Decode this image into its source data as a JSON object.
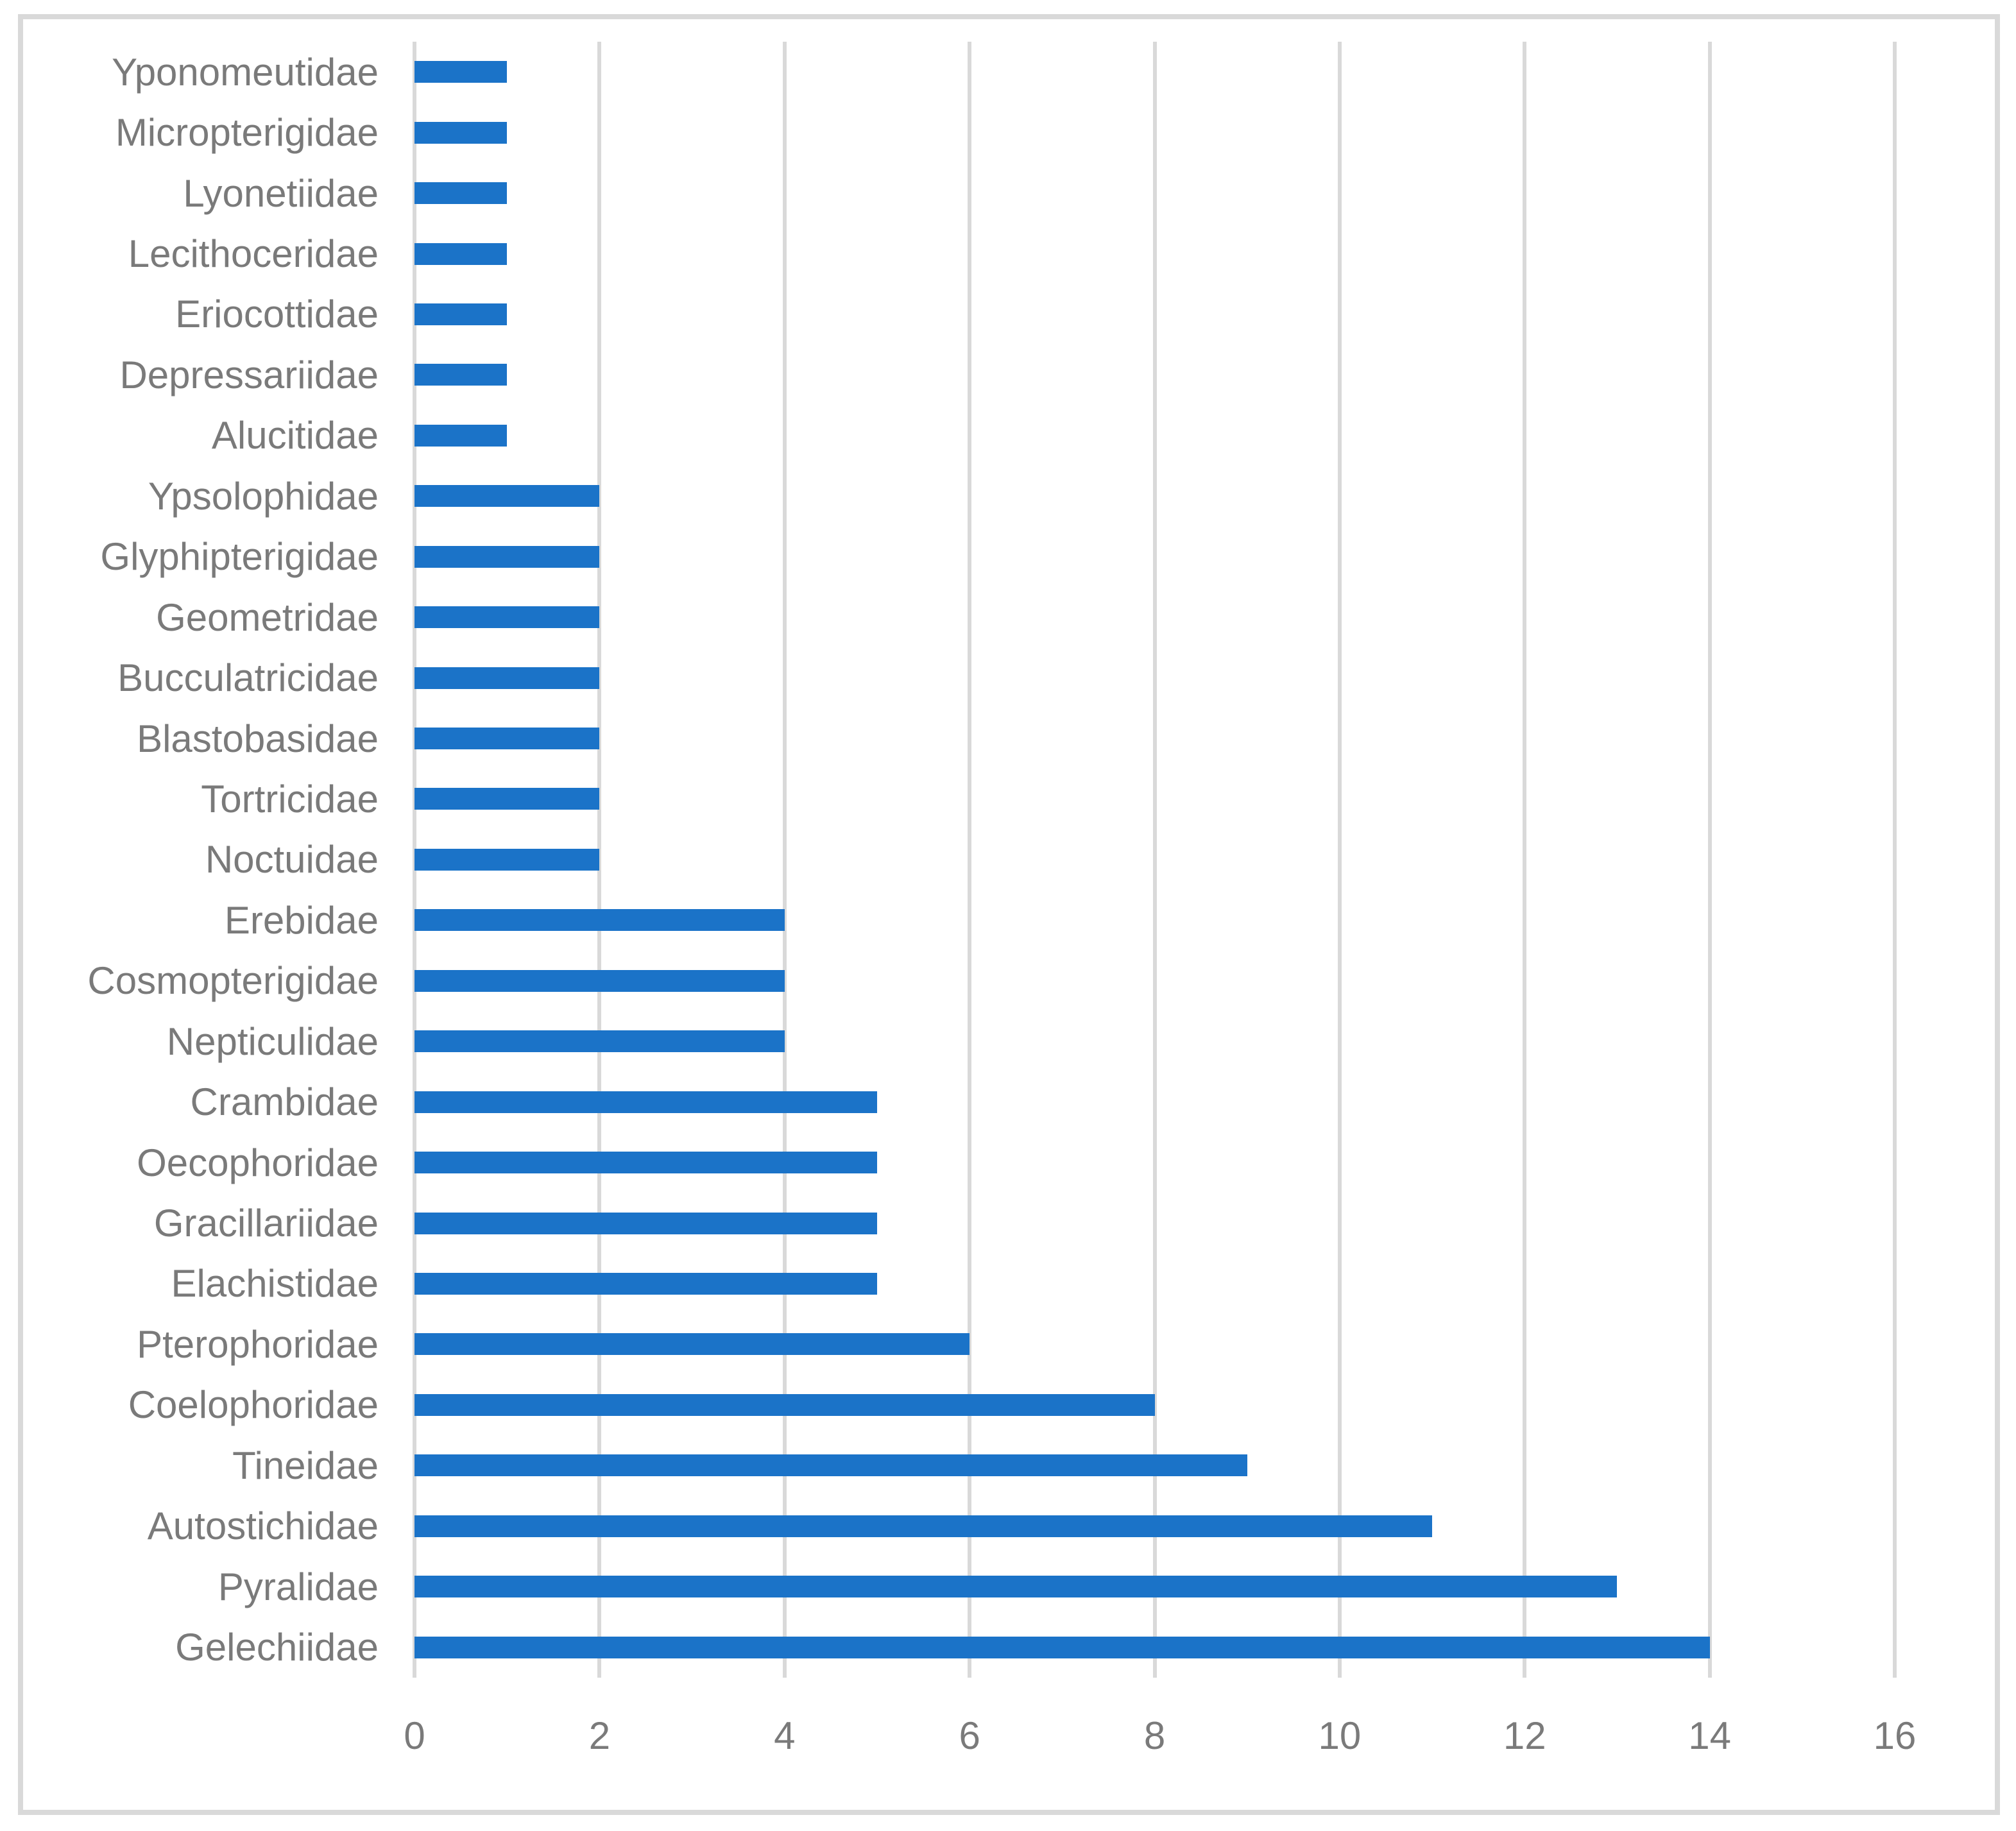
{
  "chart_data": {
    "type": "bar",
    "orientation": "horizontal",
    "title": "",
    "xlabel": "",
    "ylabel": "",
    "categories": [
      "Yponomeutidae",
      "Micropterigidae",
      "Lyonetiidae",
      "Lecithoceridae",
      "Eriocottidae",
      "Depressariidae",
      "Alucitidae",
      "Ypsolophidae",
      "Glyphipterigidae",
      "Geometridae",
      "Bucculatricidae",
      "Blastobasidae",
      "Tortricidae",
      "Noctuidae",
      "Erebidae",
      "Cosmopterigidae",
      "Nepticulidae",
      "Crambidae",
      "Oecophoridae",
      "Gracillariidae",
      "Elachistidae",
      "Pterophoridae",
      "Coelophoridae",
      "Tineidae",
      "Autostichidae",
      "Pyralidae",
      "Gelechiidae"
    ],
    "values": [
      1,
      1,
      1,
      1,
      1,
      1,
      1,
      2,
      2,
      2,
      2,
      2,
      2,
      2,
      4,
      4,
      4,
      5,
      5,
      5,
      5,
      6,
      8,
      9,
      11,
      13,
      14
    ],
    "xlim": [
      0,
      16
    ],
    "xticks": [
      0,
      2,
      4,
      6,
      8,
      10,
      12,
      14,
      16
    ],
    "grid": true,
    "legend": false,
    "bar_color": "#1B73C8",
    "gridline_color": "#D9D9D9",
    "border_color": "#D9D9D9",
    "axis_label_color": "#7A7A7A"
  }
}
